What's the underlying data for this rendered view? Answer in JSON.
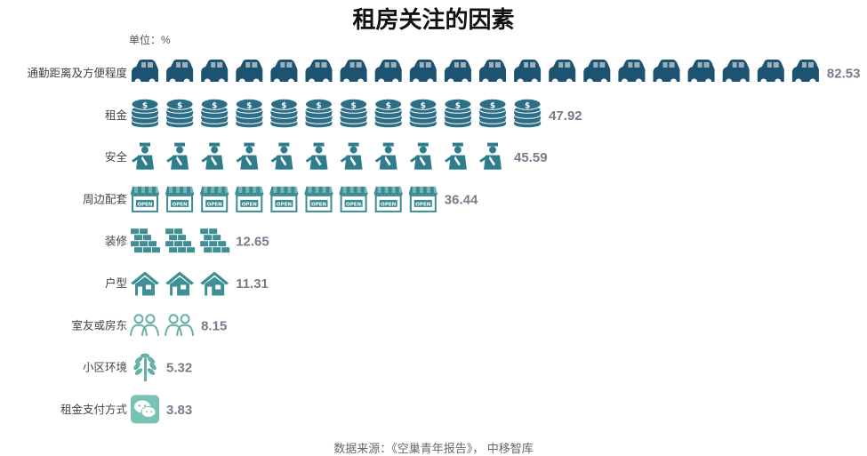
{
  "chart_data": {
    "type": "bar",
    "title": "租房关注的因素",
    "unit_label": "单位：%",
    "source": "数据来源：《空巢青年报告》， 中移智库",
    "categories": [
      "通勤距离及方便程度",
      "租金",
      "安全",
      "周边配套",
      "装修",
      "户型",
      "室友或房东",
      "小区环境",
      "租金支付方式"
    ],
    "values": [
      82.53,
      47.92,
      45.59,
      36.44,
      12.65,
      11.31,
      8.15,
      5.32,
      3.83
    ],
    "value_labels": [
      "82.53",
      "47.92",
      "45.59",
      "36.44",
      "12.65",
      "11.31",
      "8.15",
      "5.32",
      "3.83"
    ],
    "icon_counts": [
      20,
      12,
      11,
      9,
      3,
      3,
      2,
      1,
      1
    ],
    "icons": [
      "car-icon",
      "coins-icon",
      "guard-icon",
      "shop-icon",
      "bricks-icon",
      "house-icon",
      "people-icon",
      "tree-icon",
      "wechat-icon"
    ],
    "colors": {
      "car": "#1d5270",
      "coins": "#2c6e86",
      "guard": "#2f7d8c",
      "shop": "#3a8d93",
      "bricks": "#3f8f94",
      "house": "#3f8f94",
      "people": "#66b0a8",
      "tree": "#66b0a8",
      "wechat": "#78c2b6",
      "value_text": "#7a7a8a",
      "label_text": "#444444"
    }
  }
}
